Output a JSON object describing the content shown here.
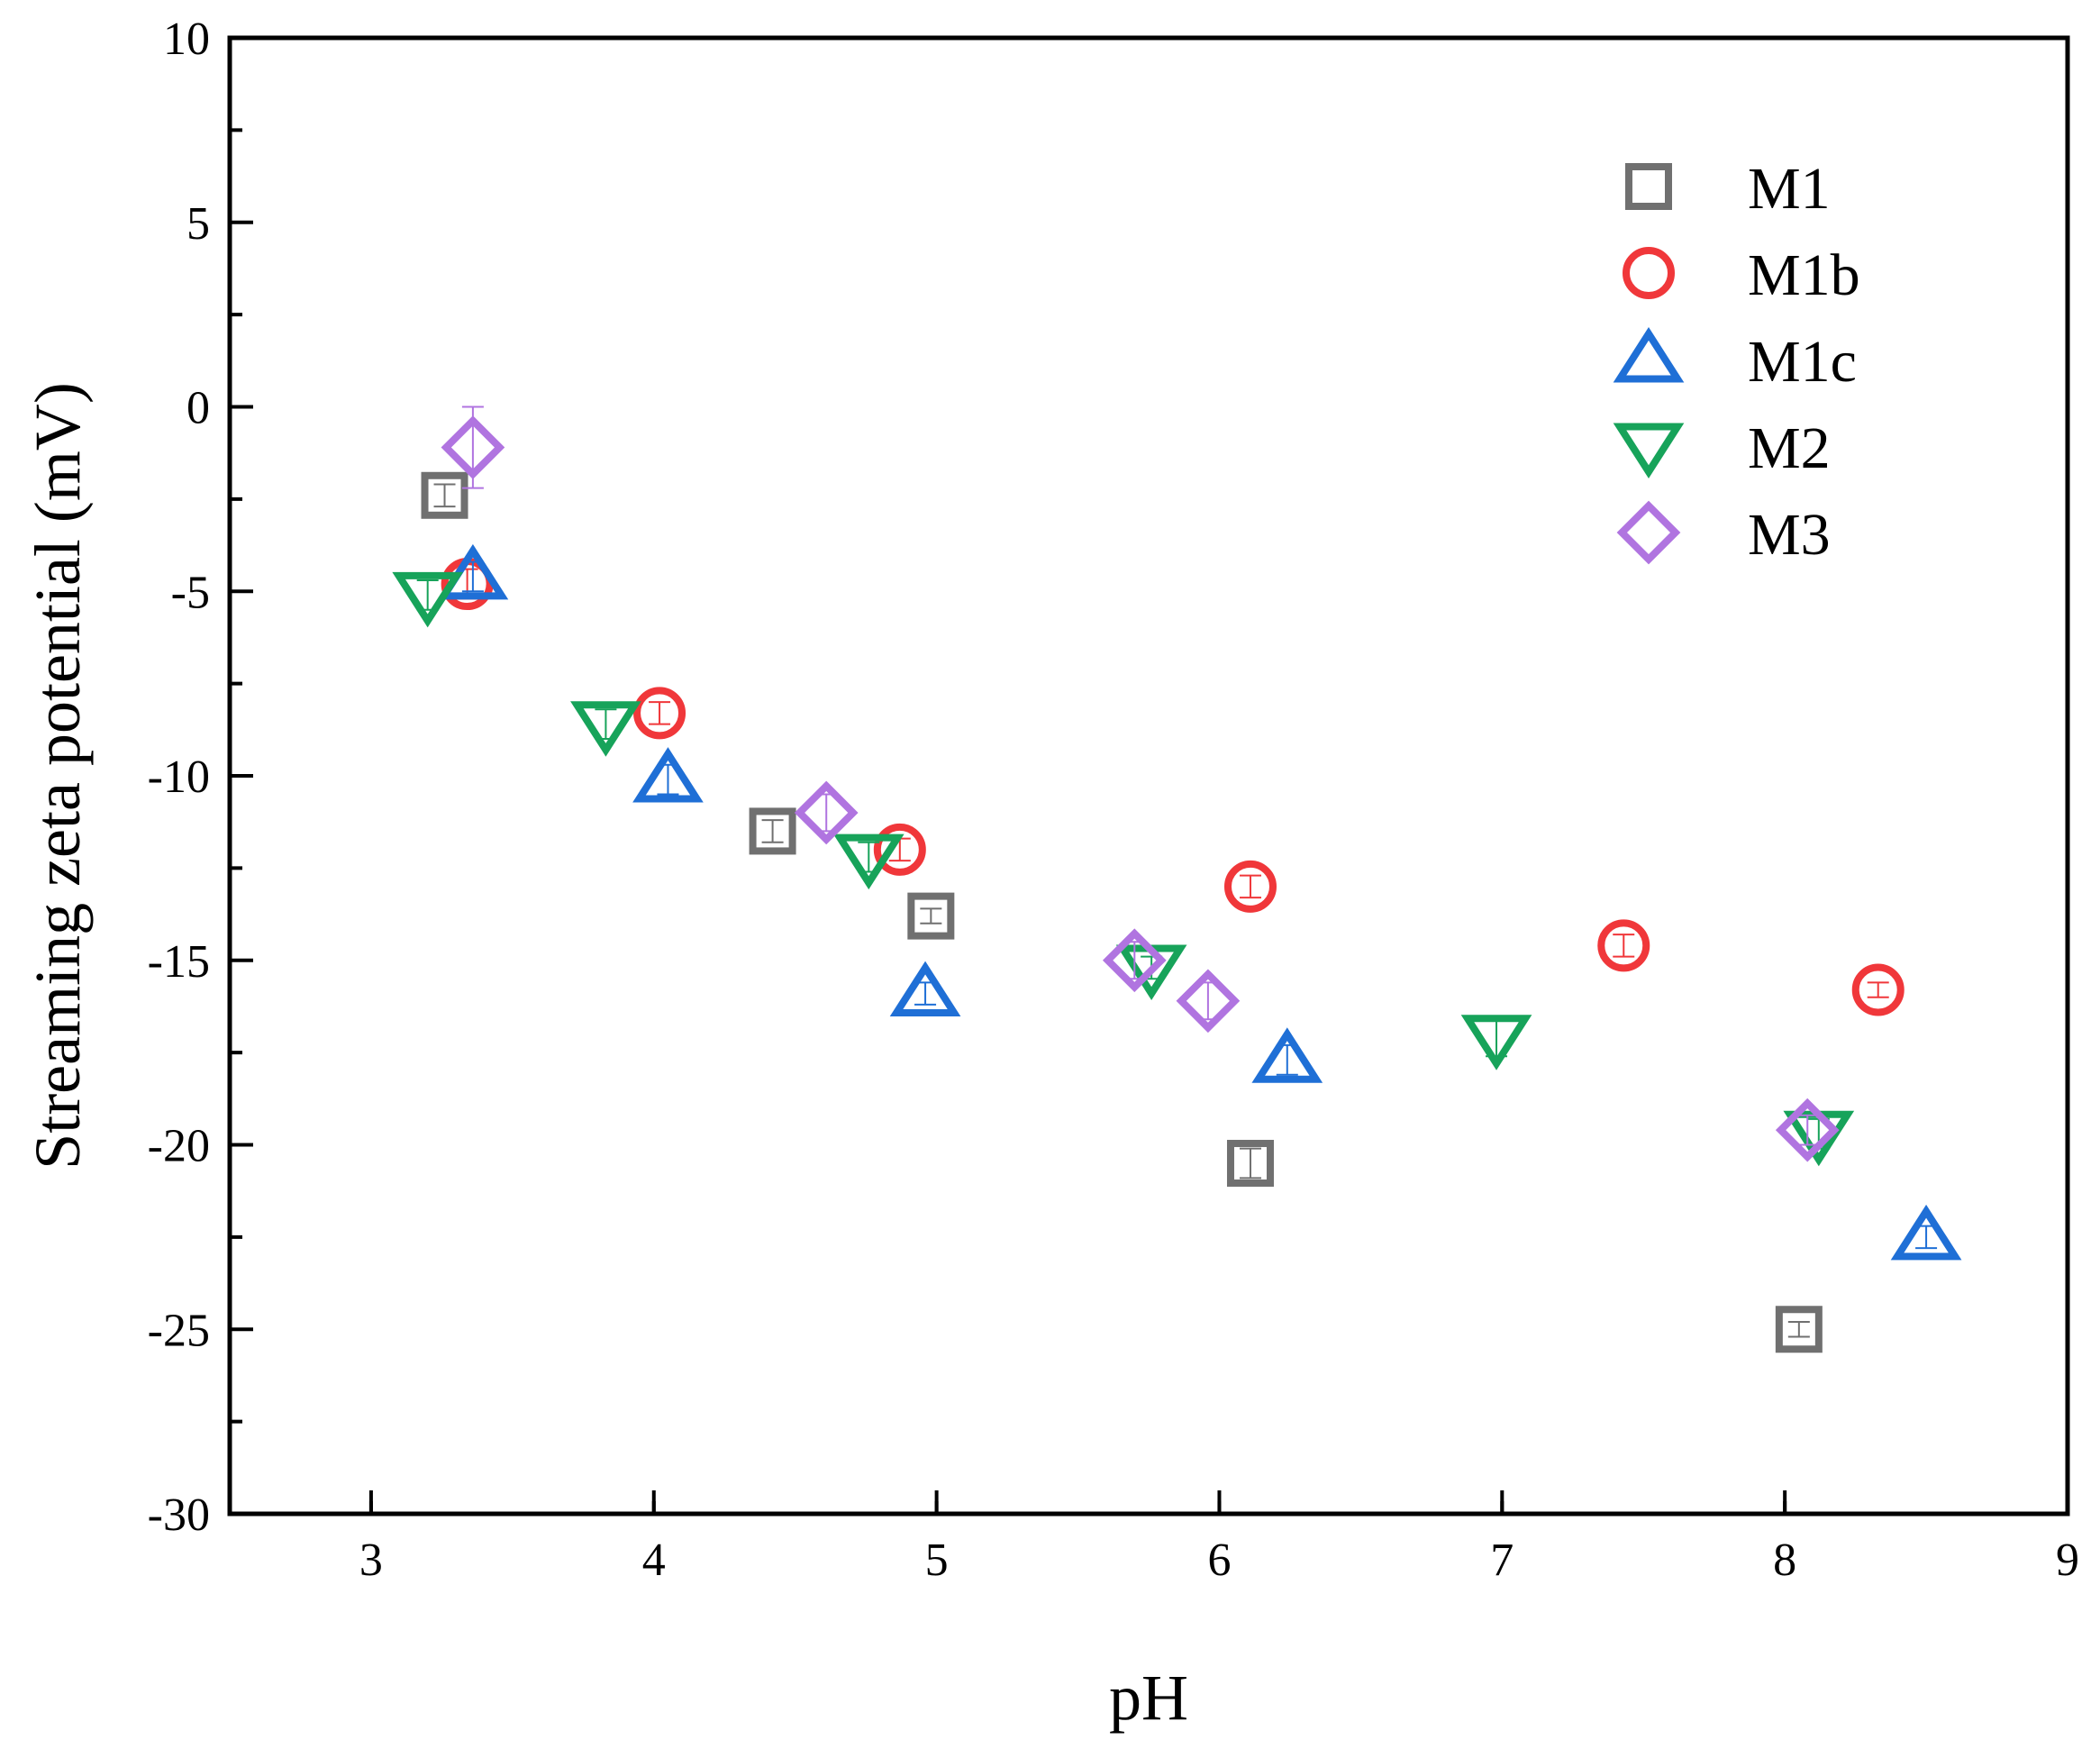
{
  "chart_data": {
    "type": "scatter",
    "title": "",
    "xlabel": "pH",
    "ylabel": "Streaming zeta potential (mV)",
    "xlim": [
      2.5,
      9
    ],
    "ylim": [
      -30,
      10
    ],
    "xticks": [
      3,
      4,
      5,
      6,
      7,
      8,
      9
    ],
    "yticks": [
      10,
      5,
      0,
      -5,
      -10,
      -15,
      -20,
      -25,
      -30
    ],
    "xtick_labels": [
      "3",
      "4",
      "5",
      "6",
      "7",
      "8",
      "9"
    ],
    "ytick_labels": [
      "10",
      "5",
      "0",
      "-5",
      "-10",
      "-15",
      "-20",
      "-25",
      "-30"
    ],
    "legend_position": "top-right",
    "grid": false,
    "series": [
      {
        "name": "M1",
        "marker": "square",
        "color": "#707070",
        "points": [
          {
            "x": 3.26,
            "y": -2.4,
            "err": 0.3
          },
          {
            "x": 4.42,
            "y": -11.5,
            "err": 0.3
          },
          {
            "x": 4.98,
            "y": -13.8,
            "err": 0.2
          },
          {
            "x": 6.11,
            "y": -20.5,
            "err": 0.4
          },
          {
            "x": 8.05,
            "y": -25.0,
            "err": 0.2
          }
        ]
      },
      {
        "name": "M1b",
        "marker": "circle",
        "color": "#f0373a",
        "points": [
          {
            "x": 3.34,
            "y": -4.8,
            "err": 0.4
          },
          {
            "x": 4.02,
            "y": -8.3,
            "err": 0.3
          },
          {
            "x": 4.87,
            "y": -12.0,
            "err": 0.3
          },
          {
            "x": 6.11,
            "y": -13.0,
            "err": 0.3
          },
          {
            "x": 7.43,
            "y": -14.6,
            "err": 0.3
          },
          {
            "x": 8.33,
            "y": -15.8,
            "err": 0.2
          }
        ]
      },
      {
        "name": "M1c",
        "marker": "triangle-up",
        "color": "#1f6fd6",
        "points": [
          {
            "x": 3.36,
            "y": -4.6,
            "err": 0.4
          },
          {
            "x": 4.05,
            "y": -10.1,
            "err": 0.4
          },
          {
            "x": 4.96,
            "y": -15.9,
            "err": 0.3
          },
          {
            "x": 6.24,
            "y": -17.7,
            "err": 0.4
          },
          {
            "x": 8.5,
            "y": -22.5,
            "err": 0.3
          }
        ]
      },
      {
        "name": "M2",
        "marker": "triangle-down",
        "color": "#17a35a",
        "points": [
          {
            "x": 3.2,
            "y": -5.1,
            "err": 0.4
          },
          {
            "x": 3.83,
            "y": -8.6,
            "err": 0.4
          },
          {
            "x": 4.76,
            "y": -12.2,
            "err": 0.4
          },
          {
            "x": 5.76,
            "y": -15.2,
            "err": 0.3
          },
          {
            "x": 6.98,
            "y": -17.1,
            "err": 0.5
          },
          {
            "x": 8.12,
            "y": -19.7,
            "err": 0.4
          }
        ]
      },
      {
        "name": "M3",
        "marker": "diamond",
        "color": "#b074e0",
        "points": [
          {
            "x": 3.36,
            "y": -1.1,
            "err": 1.1
          },
          {
            "x": 4.61,
            "y": -11.0,
            "err": 0.5
          },
          {
            "x": 5.7,
            "y": -15.0,
            "err": 0.5
          },
          {
            "x": 5.96,
            "y": -16.1,
            "err": 0.5
          },
          {
            "x": 8.08,
            "y": -19.6,
            "err": 0.4
          }
        ]
      }
    ]
  }
}
